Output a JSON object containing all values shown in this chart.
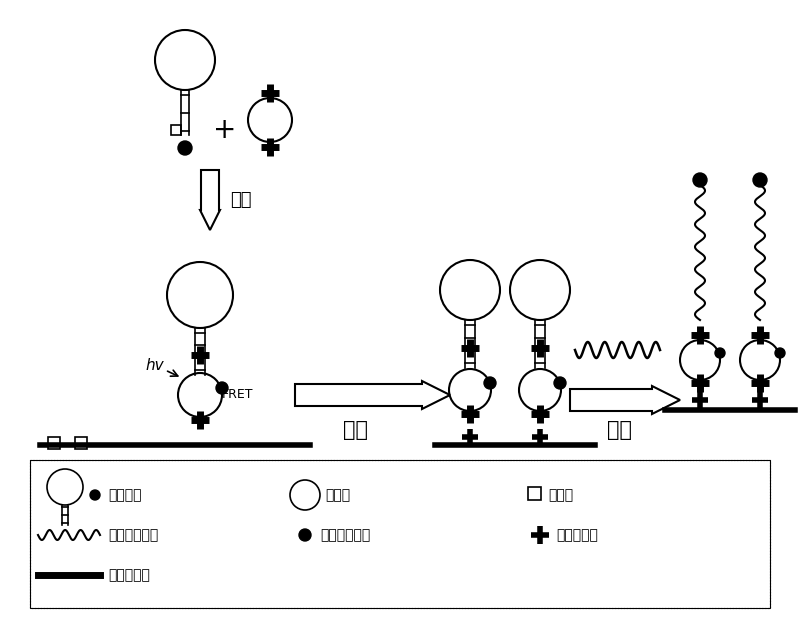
{
  "bg_color": "#ffffff",
  "labels": {
    "biaoji": "标记",
    "guding": "固定",
    "jiaojiao": "杂交",
    "fret": "FRET",
    "hv": "hv",
    "legend_mol_beacon": "分子信标",
    "legend_qd": "量子点",
    "legend_biotin": "生物素",
    "legend_nucleic": "特定核酸序列",
    "legend_quencher": "荧光缬灭基团",
    "legend_strept": "链霉亲和素",
    "legend_solid": "固相支持物"
  }
}
